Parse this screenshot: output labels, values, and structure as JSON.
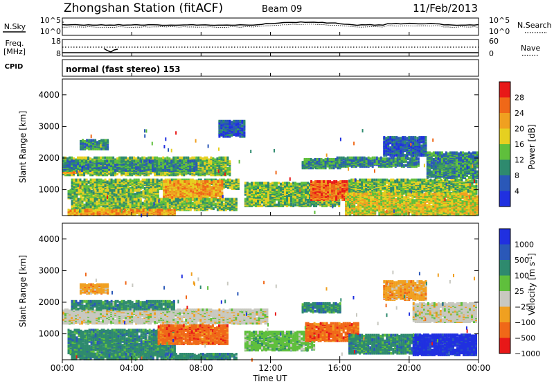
{
  "header": {
    "station": "Zhongshan Station (fitACF)",
    "beam": "Beam 09",
    "date": "11/Feb/2013",
    "program": "normal (fast stereo) 153"
  },
  "labels": {
    "nsky": "N.Sky",
    "nsearch": "N.Search",
    "freq_line1": "Freq.",
    "freq_line2": "[MHz]",
    "nave": "Nave",
    "cpid": "CPID",
    "power_label": "Power [dB]",
    "velocity_label": "Velocity [m s",
    "velocity_exp": "-1",
    "slant_range": "Slant Range [km]",
    "time_axis": "Time UT"
  },
  "noise_panel": {
    "left_ticks": [
      "10^5",
      "10^0"
    ],
    "right_ticks": [
      "10^5",
      "10^0"
    ]
  },
  "freq_panel": {
    "left_ticks": [
      "18",
      "8"
    ],
    "right_ticks": [
      "60",
      "0"
    ]
  },
  "colors": {
    "power_scale": [
      "#2030e0",
      "#2a58b8",
      "#2e8a6e",
      "#5fbf3c",
      "#e6d020",
      "#f0a020",
      "#f06818",
      "#e81818"
    ],
    "velocity_scale": [
      "#e81818",
      "#f06818",
      "#f0a020",
      "#c8c8c0",
      "#5fbf3c",
      "#2e8a6e",
      "#2a58b8",
      "#2030e0"
    ],
    "ground_scatter": "#c8c8c0"
  },
  "chart_data": {
    "type": "heatmap",
    "x_ticks": [
      "00:00",
      "04:00",
      "08:00",
      "12:00",
      "16:00",
      "20:00",
      "00:00"
    ],
    "xlim_hours": [
      0,
      24
    ],
    "panels": [
      {
        "name": "power",
        "ylim_km": [
          180,
          4500
        ],
        "y_ticks": [
          "1000",
          "2000",
          "3000",
          "4000"
        ],
        "y_tick_values": [
          1000,
          2000,
          3000,
          4000
        ],
        "colorbar_ticks": [
          "4",
          "8",
          "12",
          "16",
          "20",
          "24",
          "28"
        ],
        "colorbar_range": [
          0,
          32
        ],
        "regions": [
          {
            "t0": 0,
            "t1": 9.6,
            "r0": 1480,
            "r1": 2050,
            "v": 13
          },
          {
            "t0": 0,
            "t1": 1.2,
            "r0": 1550,
            "r1": 1700,
            "v": 20
          },
          {
            "t0": 0,
            "t1": 7.8,
            "r0": 1620,
            "r1": 1950,
            "v": 9
          },
          {
            "t0": 1.0,
            "t1": 2.6,
            "r0": 2300,
            "r1": 2600,
            "v": 8
          },
          {
            "t0": 0.5,
            "t1": 10.2,
            "r0": 1050,
            "r1": 1350,
            "v": 12
          },
          {
            "t0": 5.8,
            "t1": 9.2,
            "r0": 700,
            "r1": 1300,
            "v": 23
          },
          {
            "t0": 0.3,
            "t1": 5.5,
            "r0": 750,
            "r1": 1000,
            "v": 14
          },
          {
            "t0": 0.5,
            "t1": 10,
            "r0": 380,
            "r1": 720,
            "v": 12
          },
          {
            "t0": 0.3,
            "t1": 6.5,
            "r0": 220,
            "r1": 380,
            "v": 22
          },
          {
            "t0": 10.5,
            "t1": 16,
            "r0": 500,
            "r1": 1250,
            "v": 12
          },
          {
            "t0": 14.3,
            "t1": 17.2,
            "r0": 700,
            "r1": 1300,
            "v": 24
          },
          {
            "t0": 13.8,
            "t1": 16,
            "r0": 1700,
            "r1": 2000,
            "v": 9
          },
          {
            "t0": 15.8,
            "t1": 20.5,
            "r0": 1750,
            "r1": 2050,
            "v": 10
          },
          {
            "t0": 16.5,
            "t1": 23.9,
            "r0": 900,
            "r1": 1350,
            "v": 12
          },
          {
            "t0": 16.3,
            "t1": 23.9,
            "r0": 220,
            "r1": 900,
            "v": 19
          },
          {
            "t0": 21,
            "t1": 23.9,
            "r0": 1400,
            "r1": 2200,
            "v": 9
          },
          {
            "t0": 18.5,
            "t1": 21,
            "r0": 2100,
            "r1": 2700,
            "v": 7
          },
          {
            "t0": 9.0,
            "t1": 10.5,
            "r0": 2700,
            "r1": 3200,
            "v": 6
          }
        ]
      },
      {
        "name": "velocity",
        "ylim_km": [
          180,
          4500
        ],
        "y_ticks": [
          "1000",
          "2000",
          "3000",
          "4000"
        ],
        "y_tick_values": [
          1000,
          2000,
          3000,
          4000
        ],
        "colorbar_ticks": [
          "1000",
          "500",
          "100",
          "25",
          "−25",
          "−100",
          "−500",
          "−1000"
        ],
        "regions": [
          {
            "t0": 0,
            "t1": 11.8,
            "r0": 1350,
            "r1": 1800,
            "v": 3
          },
          {
            "t0": 0,
            "t1": 1.2,
            "r0": 1550,
            "r1": 1700,
            "v": 3
          },
          {
            "t0": 0.5,
            "t1": 6.5,
            "r0": 1800,
            "r1": 2050,
            "v": 5
          },
          {
            "t0": 1.0,
            "t1": 2.6,
            "r0": 2300,
            "r1": 2600,
            "v": 2
          },
          {
            "t0": 0.3,
            "t1": 6.5,
            "r0": 380,
            "r1": 1150,
            "v": 5
          },
          {
            "t0": 5.5,
            "t1": 9.5,
            "r0": 700,
            "r1": 1300,
            "v": 1
          },
          {
            "t0": 0.5,
            "t1": 10,
            "r0": 220,
            "r1": 400,
            "v": 5
          },
          {
            "t0": 10.5,
            "t1": 14.5,
            "r0": 500,
            "r1": 1100,
            "v": 4
          },
          {
            "t0": 14,
            "t1": 17,
            "r0": 800,
            "r1": 1350,
            "v": 1
          },
          {
            "t0": 16.5,
            "t1": 21,
            "r0": 400,
            "r1": 1000,
            "v": 5
          },
          {
            "t0": 20.2,
            "t1": 23.9,
            "r0": 350,
            "r1": 1000,
            "v": 7
          },
          {
            "t0": 20.2,
            "t1": 23.9,
            "r0": 1400,
            "r1": 2000,
            "v": 3
          },
          {
            "t0": 18.5,
            "t1": 21,
            "r0": 2100,
            "r1": 2700,
            "v": 2
          },
          {
            "t0": 13.8,
            "t1": 16,
            "r0": 1700,
            "r1": 2000,
            "v": 5
          }
        ]
      }
    ]
  }
}
